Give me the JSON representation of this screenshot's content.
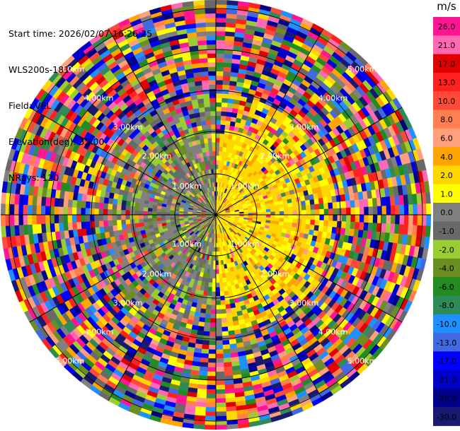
{
  "header": {
    "start_time": "Start time: 2026/02/07 16:26:25",
    "instrument": "WLS200s-181",
    "field": "Field: VEL",
    "elevation": "Elevation(deg): 35.00",
    "nrays": "NRays: 120"
  },
  "chart_data": {
    "type": "heatmap",
    "projection": "polar-ppi",
    "grid": true,
    "n_rays": 120,
    "range_rings": [
      "1.00km",
      "2.00km",
      "3.00km",
      "4.00km",
      "5.00km"
    ],
    "colorbar": {
      "unit": "m/s",
      "placement": "right",
      "ticks": [
        "26.0",
        "21.0",
        "17.0",
        "13.0",
        "10.0",
        "8.0",
        "6.0",
        "4.0",
        "2.0",
        "1.0",
        "0.0",
        "-1.0",
        "-2.0",
        "-4.0",
        "-6.0",
        "-8.0",
        "-10.0",
        "-13.0",
        "-17.0",
        "-21.0",
        "-26.0",
        "-30.0"
      ],
      "colors": [
        "#ff1493",
        "#ff69b4",
        "#e00000",
        "#ff2020",
        "#ff4a3a",
        "#ff7f50",
        "#ffa07a",
        "#ffa500",
        "#ffd700",
        "#ffff00",
        "#808080",
        "#696969",
        "#9acd32",
        "#6b8e23",
        "#228b22",
        "#2e8b57",
        "#1e90ff",
        "#4169e1",
        "#0000ff",
        "#0000cd",
        "#00008b",
        "#191970"
      ]
    }
  }
}
